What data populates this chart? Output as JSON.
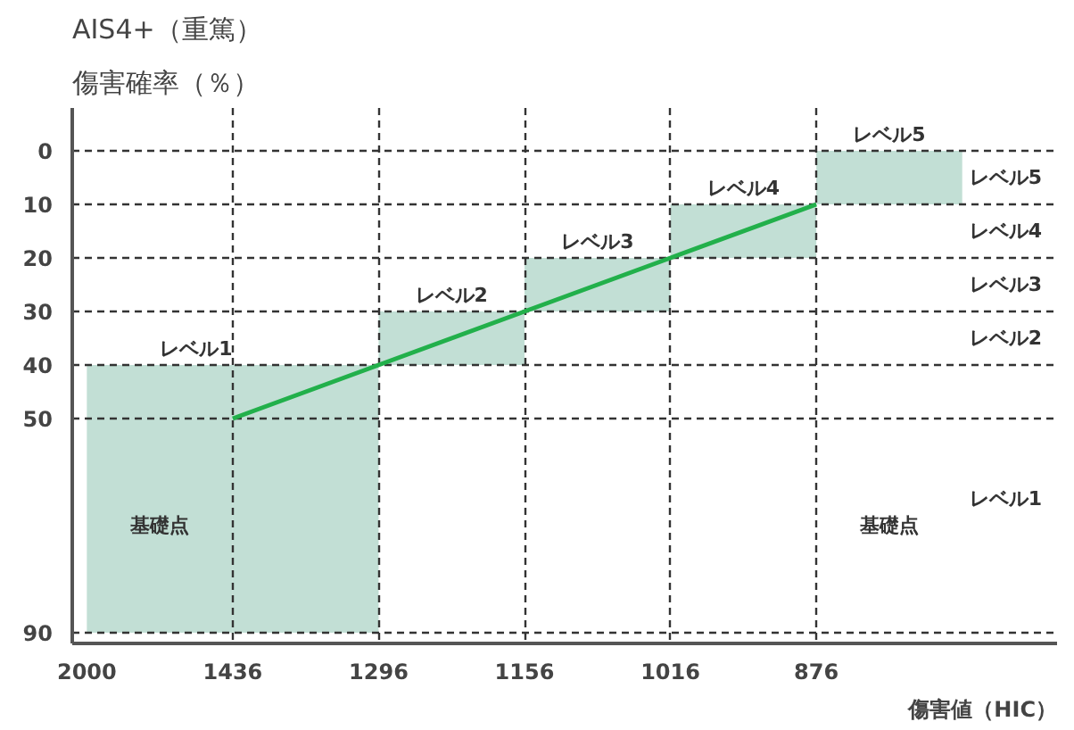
{
  "chart_data": {
    "type": "line",
    "title": "AIS4+（重篤）",
    "ylabel": "傷害確率（％）",
    "xlabel": "傷害値（HIC）",
    "categories": [
      "2000",
      "1436",
      "1296",
      "1156",
      "1016",
      "876",
      null
    ],
    "series": [
      {
        "type": "bar",
        "color": "#c2dfd5",
        "base": [
          null,
          40,
          40,
          30,
          20,
          10,
          0
        ],
        "values": [
          null,
          50,
          50,
          10,
          10,
          10,
          10
        ]
      },
      {
        "color": "#22b04b",
        "values": [
          null,
          50,
          40,
          30,
          20,
          10,
          null
        ]
      }
    ],
    "ylim": [
      92,
      -8
    ],
    "yticks": [
      0,
      10,
      20,
      30,
      40,
      50,
      90
    ],
    "grid": true,
    "line_style": "solid",
    "annotations": [
      "レベル1",
      "レベル2",
      "レベル3",
      "レベル4",
      "レベル5",
      "基礎点",
      "基礎点",
      "レベル1",
      "レベル2",
      "レベル3",
      "レベル4",
      "レベル5"
    ]
  }
}
